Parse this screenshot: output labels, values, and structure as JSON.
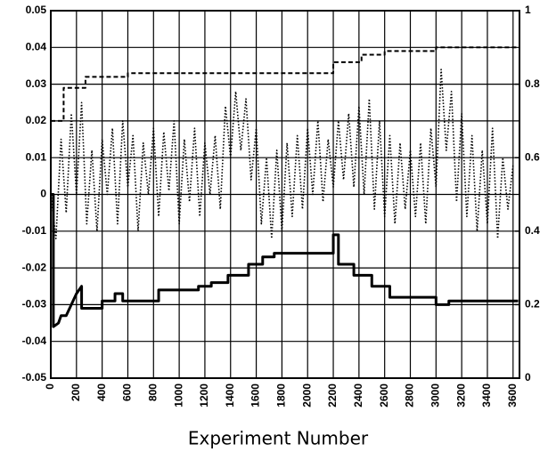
{
  "chart_data": {
    "type": "line",
    "x_label": "Experiment Number",
    "xlim": [
      0,
      3650
    ],
    "ylim": [
      -0.05,
      0.05
    ],
    "y2lim": [
      0,
      1
    ],
    "xticks": [
      0,
      200,
      400,
      600,
      800,
      1000,
      1200,
      1400,
      1600,
      1800,
      2000,
      2200,
      2400,
      2600,
      2800,
      3000,
      3200,
      3400,
      3600
    ],
    "yticks": [
      -0.05,
      -0.04,
      -0.03,
      -0.02,
      -0.01,
      0,
      0.01,
      0.02,
      0.03,
      0.04,
      0.05
    ],
    "y2ticks": [
      0,
      0.2,
      0.4,
      0.6,
      0.8,
      1
    ],
    "grid": true,
    "series": [
      {
        "color": "#000000",
        "dash": "dotted",
        "axis": "y",
        "x": [
          0,
          40,
          80,
          120,
          160,
          200,
          240,
          280,
          320,
          360,
          400,
          440,
          480,
          520,
          560,
          600,
          640,
          680,
          720,
          760,
          800,
          840,
          880,
          920,
          960,
          1000,
          1040,
          1080,
          1120,
          1160,
          1200,
          1240,
          1280,
          1320,
          1360,
          1400,
          1440,
          1480,
          1520,
          1560,
          1600,
          1640,
          1680,
          1720,
          1760,
          1800,
          1840,
          1880,
          1920,
          1960,
          2000,
          2040,
          2080,
          2120,
          2160,
          2200,
          2240,
          2280,
          2320,
          2360,
          2400,
          2440,
          2480,
          2520,
          2560,
          2600,
          2640,
          2680,
          2720,
          2760,
          2800,
          2840,
          2880,
          2920,
          2960,
          3000,
          3040,
          3080,
          3120,
          3160,
          3200,
          3240,
          3280,
          3320,
          3360,
          3400,
          3440,
          3480,
          3520,
          3560,
          3600
        ],
        "values": [
          0.0,
          -0.012,
          0.015,
          -0.005,
          0.022,
          0.0,
          0.025,
          -0.008,
          0.012,
          -0.01,
          0.015,
          0.0,
          0.018,
          -0.008,
          0.02,
          0.002,
          0.016,
          -0.01,
          0.014,
          0.0,
          0.018,
          -0.006,
          0.017,
          0.001,
          0.02,
          -0.008,
          0.015,
          -0.002,
          0.018,
          -0.006,
          0.014,
          0.0,
          0.016,
          -0.004,
          0.024,
          0.01,
          0.028,
          0.012,
          0.026,
          0.004,
          0.018,
          -0.008,
          0.01,
          -0.012,
          0.012,
          -0.01,
          0.014,
          -0.006,
          0.016,
          -0.004,
          0.018,
          0.0,
          0.02,
          -0.002,
          0.015,
          0.002,
          0.02,
          0.004,
          0.022,
          0.002,
          0.024,
          0.0,
          0.026,
          -0.004,
          0.02,
          -0.006,
          0.016,
          -0.008,
          0.014,
          -0.004,
          0.012,
          -0.006,
          0.014,
          -0.008,
          0.018,
          0.002,
          0.034,
          0.012,
          0.028,
          -0.002,
          0.022,
          -0.006,
          0.016,
          -0.01,
          0.012,
          -0.008,
          0.018,
          -0.012,
          0.01,
          -0.004,
          0.008
        ]
      },
      {
        "color": "#000000",
        "dash": "dashed",
        "axis": "y2",
        "x": [
          0,
          100,
          100,
          270,
          270,
          600,
          600,
          2200,
          2200,
          2420,
          2420,
          2600,
          2600,
          3000,
          3000,
          3640
        ],
        "values": [
          0.7,
          0.7,
          0.79,
          0.79,
          0.82,
          0.82,
          0.83,
          0.83,
          0.86,
          0.86,
          0.88,
          0.88,
          0.89,
          0.89,
          0.9,
          0.9
        ]
      },
      {
        "color": "#000000",
        "dash": "solid",
        "axis": "y2",
        "x": [
          0,
          20,
          20,
          60,
          80,
          120,
          160,
          200,
          240,
          240,
          400,
          400,
          500,
          500,
          560,
          560,
          840,
          840,
          1150,
          1150,
          1250,
          1250,
          1380,
          1380,
          1540,
          1540,
          1650,
          1650,
          1740,
          1740,
          2200,
          2200,
          2240,
          2240,
          2360,
          2360,
          2500,
          2500,
          2640,
          2640,
          3000,
          3000,
          3100,
          3100,
          3640
        ],
        "values": [
          0.5,
          0.5,
          0.14,
          0.15,
          0.17,
          0.17,
          0.2,
          0.23,
          0.25,
          0.19,
          0.19,
          0.21,
          0.21,
          0.23,
          0.23,
          0.21,
          0.21,
          0.24,
          0.24,
          0.25,
          0.25,
          0.26,
          0.26,
          0.28,
          0.28,
          0.31,
          0.31,
          0.33,
          0.33,
          0.34,
          0.34,
          0.39,
          0.39,
          0.31,
          0.31,
          0.28,
          0.28,
          0.25,
          0.25,
          0.22,
          0.22,
          0.2,
          0.2,
          0.21,
          0.21
        ]
      }
    ]
  }
}
